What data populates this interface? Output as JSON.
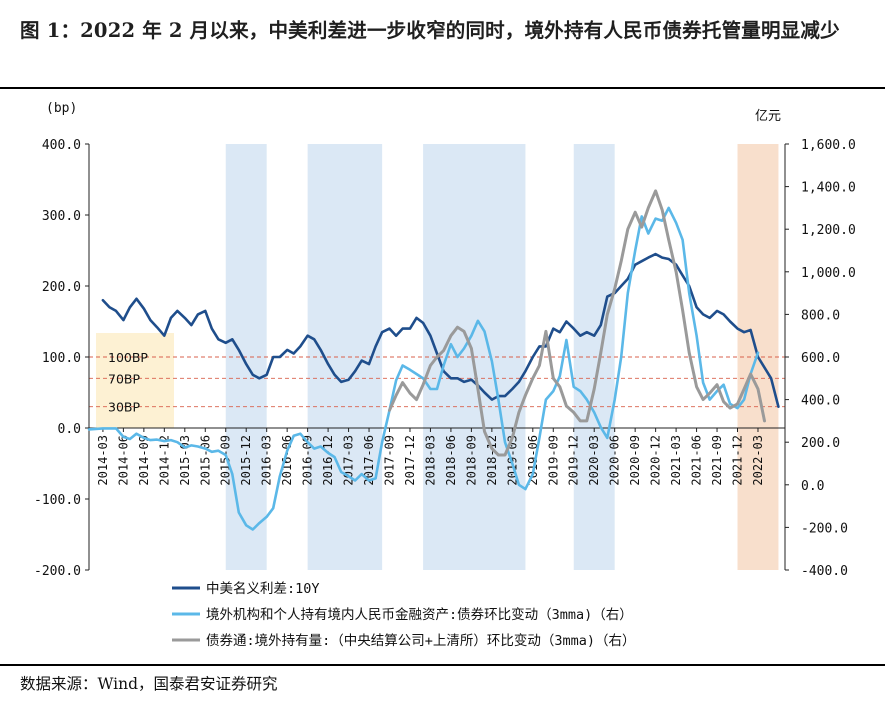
{
  "title": "图 1：2022 年 2 月以来，中美利差进一步收窄的同时，境外持有人民币债券托管量明显减少",
  "source": "数据来源：Wind，国泰君安证券研究",
  "chart_data": {
    "type": "line",
    "left_axis_label": "(bp)",
    "right_axis_label": "亿元",
    "ylim_left": [
      -200,
      400
    ],
    "ylim_right": [
      -400,
      1600
    ],
    "left_ticks": [
      "400.0",
      "300.0",
      "200.0",
      "100.0",
      "0.0",
      "-100.0",
      "-200.0"
    ],
    "right_ticks": [
      "1,600.0",
      "1,400.0",
      "1,200.0",
      "1,000.0",
      "800.0",
      "600.0",
      "400.0",
      "200.0",
      "0.0",
      "-200.0",
      "-400.0"
    ],
    "x_labels": [
      "2014-03",
      "2014-06",
      "2014-09",
      "2014-12",
      "2015-03",
      "2015-06",
      "2015-09",
      "2015-12",
      "2016-03",
      "2016-06",
      "2016-09",
      "2016-12",
      "2017-03",
      "2017-06",
      "2017-09",
      "2017-12",
      "2018-03",
      "2018-06",
      "2018-09",
      "2018-12",
      "2019-03",
      "2019-06",
      "2019-09",
      "2019-12",
      "2020-03",
      "2020-06",
      "2020-09",
      "2020-12",
      "2021-03",
      "2021-06",
      "2021-09",
      "2021-12",
      "2022-03"
    ],
    "reference_lines": [
      {
        "label": "100BP",
        "value": 100
      },
      {
        "label": "70BP",
        "value": 70
      },
      {
        "label": "30BP",
        "value": 30
      }
    ],
    "shaded_periods": [
      {
        "start": 2015.67,
        "end": 2016.17,
        "color": "#dbe8f5"
      },
      {
        "start": 2016.67,
        "end": 2017.58,
        "color": "#dbe8f5"
      },
      {
        "start": 2018.08,
        "end": 2019.33,
        "color": "#dbe8f5"
      },
      {
        "start": 2019.92,
        "end": 2020.42,
        "color": "#dbe8f5"
      },
      {
        "start": 2021.92,
        "end": 2022.42,
        "color": "#f8dfcc"
      }
    ],
    "series": [
      {
        "name": "中美名义利差:10Y",
        "axis": "left",
        "color": "#1f4e8c",
        "points": [
          [
            2014.17,
            180
          ],
          [
            2014.25,
            170
          ],
          [
            2014.33,
            165
          ],
          [
            2014.42,
            152
          ],
          [
            2014.5,
            170
          ],
          [
            2014.58,
            182
          ],
          [
            2014.67,
            168
          ],
          [
            2014.75,
            152
          ],
          [
            2014.83,
            142
          ],
          [
            2014.92,
            130
          ],
          [
            2015.0,
            155
          ],
          [
            2015.08,
            165
          ],
          [
            2015.17,
            155
          ],
          [
            2015.25,
            145
          ],
          [
            2015.33,
            160
          ],
          [
            2015.42,
            165
          ],
          [
            2015.5,
            140
          ],
          [
            2015.58,
            125
          ],
          [
            2015.67,
            120
          ],
          [
            2015.75,
            125
          ],
          [
            2015.83,
            110
          ],
          [
            2015.92,
            90
          ],
          [
            2016.0,
            75
          ],
          [
            2016.08,
            70
          ],
          [
            2016.17,
            75
          ],
          [
            2016.25,
            100
          ],
          [
            2016.33,
            100
          ],
          [
            2016.42,
            110
          ],
          [
            2016.5,
            105
          ],
          [
            2016.58,
            115
          ],
          [
            2016.67,
            130
          ],
          [
            2016.75,
            125
          ],
          [
            2016.83,
            110
          ],
          [
            2016.92,
            90
          ],
          [
            2017.0,
            75
          ],
          [
            2017.08,
            65
          ],
          [
            2017.17,
            68
          ],
          [
            2017.25,
            80
          ],
          [
            2017.33,
            95
          ],
          [
            2017.42,
            90
          ],
          [
            2017.5,
            115
          ],
          [
            2017.58,
            135
          ],
          [
            2017.67,
            140
          ],
          [
            2017.75,
            130
          ],
          [
            2017.83,
            140
          ],
          [
            2017.92,
            140
          ],
          [
            2018.0,
            155
          ],
          [
            2018.08,
            148
          ],
          [
            2018.17,
            130
          ],
          [
            2018.25,
            105
          ],
          [
            2018.33,
            80
          ],
          [
            2018.42,
            70
          ],
          [
            2018.5,
            70
          ],
          [
            2018.58,
            65
          ],
          [
            2018.67,
            68
          ],
          [
            2018.75,
            60
          ],
          [
            2018.83,
            50
          ],
          [
            2018.92,
            40
          ],
          [
            2019.0,
            45
          ],
          [
            2019.08,
            45
          ],
          [
            2019.17,
            55
          ],
          [
            2019.25,
            65
          ],
          [
            2019.33,
            80
          ],
          [
            2019.42,
            100
          ],
          [
            2019.5,
            115
          ],
          [
            2019.58,
            115
          ],
          [
            2019.67,
            140
          ],
          [
            2019.75,
            135
          ],
          [
            2019.83,
            150
          ],
          [
            2019.92,
            140
          ],
          [
            2020.0,
            130
          ],
          [
            2020.08,
            135
          ],
          [
            2020.17,
            130
          ],
          [
            2020.25,
            145
          ],
          [
            2020.33,
            185
          ],
          [
            2020.42,
            190
          ],
          [
            2020.5,
            200
          ],
          [
            2020.58,
            210
          ],
          [
            2020.67,
            230
          ],
          [
            2020.75,
            235
          ],
          [
            2020.83,
            240
          ],
          [
            2020.92,
            245
          ],
          [
            2021.0,
            240
          ],
          [
            2021.08,
            238
          ],
          [
            2021.17,
            230
          ],
          [
            2021.25,
            215
          ],
          [
            2021.33,
            200
          ],
          [
            2021.42,
            170
          ],
          [
            2021.5,
            160
          ],
          [
            2021.58,
            155
          ],
          [
            2021.67,
            165
          ],
          [
            2021.75,
            160
          ],
          [
            2021.83,
            150
          ],
          [
            2021.92,
            140
          ],
          [
            2022.0,
            135
          ],
          [
            2022.08,
            138
          ],
          [
            2022.17,
            100
          ],
          [
            2022.25,
            85
          ],
          [
            2022.33,
            70
          ],
          [
            2022.42,
            30
          ]
        ]
      },
      {
        "name": "境外机构和个人持有境内人民币金融资产:债券环比变动（3mma)（右）",
        "axis": "right",
        "color": "#5bb8e8",
        "points": [
          [
            2014.0,
            260
          ],
          [
            2014.17,
            265
          ],
          [
            2014.33,
            265
          ],
          [
            2014.42,
            225
          ],
          [
            2014.5,
            215
          ],
          [
            2014.58,
            240
          ],
          [
            2014.67,
            220
          ],
          [
            2014.75,
            210
          ],
          [
            2014.83,
            212
          ],
          [
            2014.92,
            205
          ],
          [
            2015.0,
            210
          ],
          [
            2015.08,
            200
          ],
          [
            2015.17,
            175
          ],
          [
            2015.25,
            185
          ],
          [
            2015.33,
            180
          ],
          [
            2015.42,
            170
          ],
          [
            2015.5,
            155
          ],
          [
            2015.58,
            160
          ],
          [
            2015.67,
            140
          ],
          [
            2015.75,
            50
          ],
          [
            2015.83,
            -130
          ],
          [
            2015.92,
            -190
          ],
          [
            2016.0,
            -210
          ],
          [
            2016.08,
            -180
          ],
          [
            2016.17,
            -150
          ],
          [
            2016.25,
            -110
          ],
          [
            2016.33,
            40
          ],
          [
            2016.42,
            160
          ],
          [
            2016.5,
            230
          ],
          [
            2016.58,
            240
          ],
          [
            2016.67,
            200
          ],
          [
            2016.75,
            170
          ],
          [
            2016.83,
            180
          ],
          [
            2016.92,
            150
          ],
          [
            2017.0,
            130
          ],
          [
            2017.08,
            60
          ],
          [
            2017.17,
            40
          ],
          [
            2017.25,
            20
          ],
          [
            2017.33,
            50
          ],
          [
            2017.42,
            20
          ],
          [
            2017.5,
            30
          ],
          [
            2017.58,
            200
          ],
          [
            2017.67,
            350
          ],
          [
            2017.75,
            490
          ],
          [
            2017.83,
            560
          ],
          [
            2017.92,
            540
          ],
          [
            2018.0,
            520
          ],
          [
            2018.08,
            500
          ],
          [
            2018.17,
            450
          ],
          [
            2018.25,
            450
          ],
          [
            2018.33,
            560
          ],
          [
            2018.42,
            660
          ],
          [
            2018.5,
            600
          ],
          [
            2018.58,
            640
          ],
          [
            2018.67,
            700
          ],
          [
            2018.75,
            770
          ],
          [
            2018.83,
            720
          ],
          [
            2018.92,
            580
          ],
          [
            2019.0,
            400
          ],
          [
            2019.08,
            200
          ],
          [
            2019.17,
            100
          ],
          [
            2019.25,
            0
          ],
          [
            2019.33,
            -20
          ],
          [
            2019.42,
            50
          ],
          [
            2019.5,
            220
          ],
          [
            2019.58,
            400
          ],
          [
            2019.67,
            440
          ],
          [
            2019.75,
            510
          ],
          [
            2019.83,
            680
          ],
          [
            2019.92,
            460
          ],
          [
            2020.0,
            440
          ],
          [
            2020.08,
            400
          ],
          [
            2020.17,
            340
          ],
          [
            2020.25,
            270
          ],
          [
            2020.33,
            220
          ],
          [
            2020.42,
            400
          ],
          [
            2020.5,
            600
          ],
          [
            2020.58,
            900
          ],
          [
            2020.67,
            1100
          ],
          [
            2020.75,
            1260
          ],
          [
            2020.83,
            1180
          ],
          [
            2020.92,
            1250
          ],
          [
            2021.0,
            1240
          ],
          [
            2021.08,
            1300
          ],
          [
            2021.17,
            1230
          ],
          [
            2021.25,
            1150
          ],
          [
            2021.33,
            900
          ],
          [
            2021.42,
            700
          ],
          [
            2021.5,
            480
          ],
          [
            2021.58,
            400
          ],
          [
            2021.67,
            440
          ],
          [
            2021.75,
            470
          ],
          [
            2021.83,
            380
          ],
          [
            2021.92,
            360
          ],
          [
            2022.0,
            400
          ],
          [
            2022.08,
            520
          ],
          [
            2022.17,
            620
          ]
        ]
      },
      {
        "name": "债券通:境外持有量:（中央结算公司+上清所）环比变动（3mma)（右）",
        "axis": "right",
        "color": "#9a9a9a",
        "points": [
          [
            2017.67,
            350
          ],
          [
            2017.75,
            420
          ],
          [
            2017.83,
            480
          ],
          [
            2017.92,
            430
          ],
          [
            2018.0,
            400
          ],
          [
            2018.08,
            470
          ],
          [
            2018.17,
            560
          ],
          [
            2018.25,
            600
          ],
          [
            2018.33,
            630
          ],
          [
            2018.42,
            700
          ],
          [
            2018.5,
            740
          ],
          [
            2018.58,
            720
          ],
          [
            2018.67,
            640
          ],
          [
            2018.75,
            450
          ],
          [
            2018.83,
            250
          ],
          [
            2018.92,
            170
          ],
          [
            2019.0,
            140
          ],
          [
            2019.08,
            140
          ],
          [
            2019.17,
            220
          ],
          [
            2019.25,
            340
          ],
          [
            2019.33,
            420
          ],
          [
            2019.42,
            500
          ],
          [
            2019.5,
            560
          ],
          [
            2019.58,
            720
          ],
          [
            2019.67,
            500
          ],
          [
            2019.75,
            460
          ],
          [
            2019.83,
            370
          ],
          [
            2019.92,
            340
          ],
          [
            2020.0,
            300
          ],
          [
            2020.08,
            300
          ],
          [
            2020.17,
            450
          ],
          [
            2020.25,
            620
          ],
          [
            2020.33,
            800
          ],
          [
            2020.42,
            920
          ],
          [
            2020.5,
            1050
          ],
          [
            2020.58,
            1200
          ],
          [
            2020.67,
            1280
          ],
          [
            2020.75,
            1210
          ],
          [
            2020.83,
            1300
          ],
          [
            2020.92,
            1380
          ],
          [
            2021.0,
            1290
          ],
          [
            2021.08,
            1150
          ],
          [
            2021.17,
            1000
          ],
          [
            2021.25,
            820
          ],
          [
            2021.33,
            620
          ],
          [
            2021.42,
            460
          ],
          [
            2021.5,
            400
          ],
          [
            2021.58,
            430
          ],
          [
            2021.67,
            470
          ],
          [
            2021.75,
            390
          ],
          [
            2021.83,
            360
          ],
          [
            2021.92,
            380
          ],
          [
            2022.0,
            450
          ],
          [
            2022.08,
            520
          ],
          [
            2022.17,
            450
          ],
          [
            2022.25,
            300
          ]
        ]
      }
    ]
  }
}
